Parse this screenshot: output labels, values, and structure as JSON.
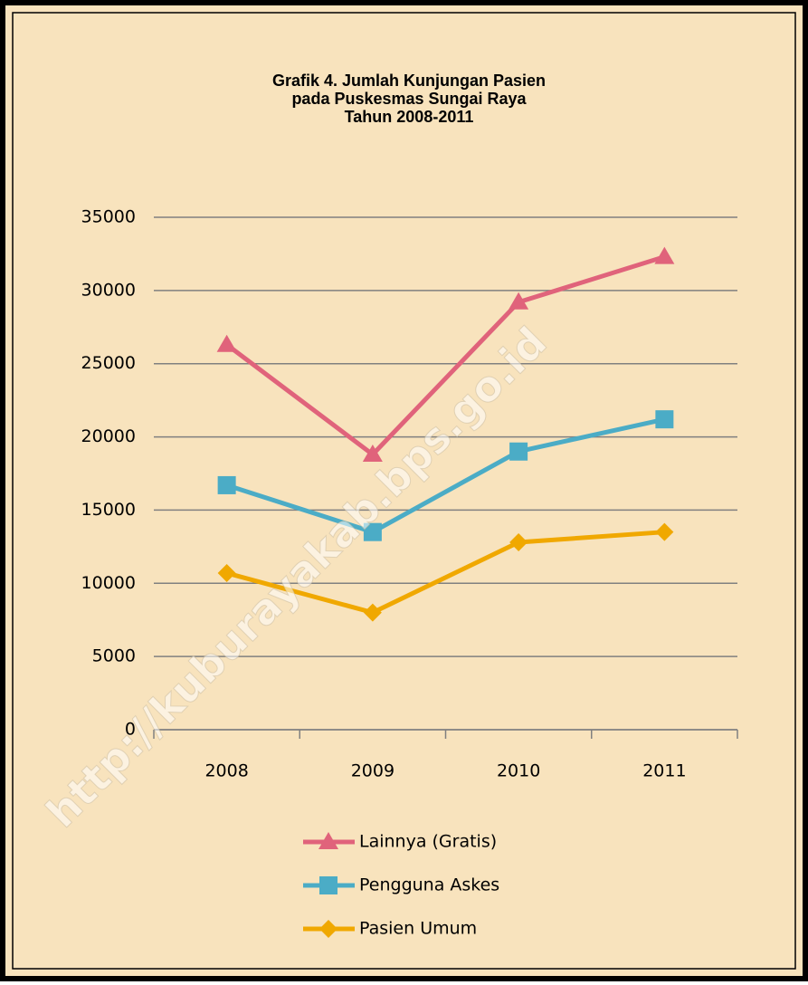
{
  "chart_data": {
    "type": "line",
    "title": [
      "Grafik 4. Jumlah Kunjungan Pasien",
      "pada Puskesmas Sungai Raya",
      "Tahun 2008-2011"
    ],
    "watermark": "http://kuburayakab.bps.go.id",
    "categories": [
      "2008",
      "2009",
      "2010",
      "2011"
    ],
    "series": [
      {
        "name": "Lainnya (Gratis)",
        "color": "#e0637b",
        "marker": "triangle",
        "values": [
          26300,
          18800,
          29200,
          32300
        ]
      },
      {
        "name": "Pengguna Askes",
        "color": "#4bacc6",
        "marker": "square",
        "values": [
          16700,
          13500,
          19000,
          21200
        ]
      },
      {
        "name": "Pasien Umum",
        "color": "#f0a800",
        "marker": "diamond",
        "values": [
          10700,
          8000,
          12800,
          13500
        ]
      }
    ],
    "ylim": [
      0,
      35000
    ],
    "yticks": [
      0,
      5000,
      10000,
      15000,
      20000,
      25000,
      30000,
      35000
    ],
    "grid": true,
    "legend": "bottom"
  }
}
